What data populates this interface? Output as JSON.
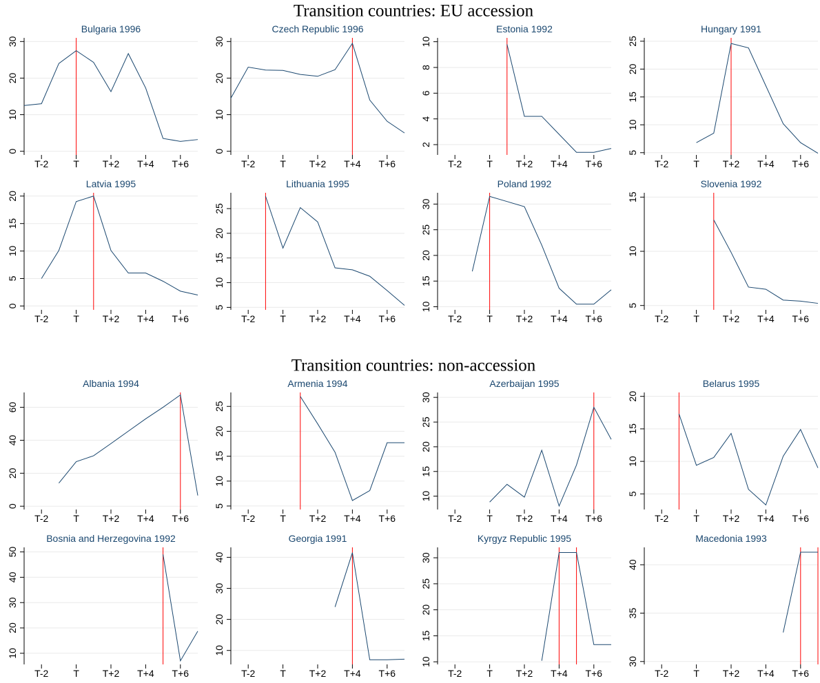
{
  "headings": [
    "Transition countries: EU accession",
    "Transition countries: non-accession"
  ],
  "chart_data": [
    {
      "type": "line",
      "title": "Bulgaria 1996",
      "x": [
        -3,
        -2,
        -1,
        0,
        1,
        2,
        3,
        4,
        5,
        6,
        7
      ],
      "values": [
        12.5,
        13,
        24,
        27.5,
        24.3,
        16.3,
        26.7,
        17.3,
        3.5,
        2.7,
        3.2
      ],
      "xlim": [
        -3,
        7
      ],
      "xticks": [
        {
          "value": -2,
          "label": "T-2"
        },
        {
          "value": 0,
          "label": "T"
        },
        {
          "value": 2,
          "label": "T+2"
        },
        {
          "value": 4,
          "label": "T+4"
        },
        {
          "value": 6,
          "label": "T+6"
        }
      ],
      "ylim": [
        -1,
        31
      ],
      "yticks": [
        0,
        10,
        20,
        30
      ],
      "vlines": [
        0
      ],
      "color": "#1a476f",
      "vline_color": "#ff0000",
      "grid": true
    },
    {
      "type": "line",
      "title": "Czech Republic 1996",
      "x": [
        -3,
        -2,
        -1,
        0,
        1,
        2,
        3,
        4,
        5,
        6,
        7
      ],
      "values": [
        14.5,
        23,
        22.2,
        22.1,
        21,
        20.5,
        22.3,
        29.5,
        14,
        8.2,
        5
      ],
      "xlim": [
        -3,
        7
      ],
      "xticks": [
        {
          "value": -2,
          "label": "T-2"
        },
        {
          "value": 0,
          "label": "T"
        },
        {
          "value": 2,
          "label": "T+2"
        },
        {
          "value": 4,
          "label": "T+4"
        },
        {
          "value": 6,
          "label": "T+6"
        }
      ],
      "ylim": [
        -1,
        31
      ],
      "yticks": [
        0,
        10,
        20,
        30
      ],
      "vlines": [
        4
      ],
      "color": "#1a476f",
      "vline_color": "#ff0000",
      "grid": true
    },
    {
      "type": "line",
      "title": "Estonia 1992",
      "x": [
        -3,
        -2,
        -1,
        0,
        1,
        2,
        3,
        4,
        5,
        6,
        7
      ],
      "values": [
        null,
        null,
        null,
        null,
        9.8,
        4.2,
        4.2,
        2.8,
        1.4,
        1.4,
        1.7
      ],
      "xlim": [
        -3,
        7
      ],
      "xticks": [
        {
          "value": -2,
          "label": "T-2"
        },
        {
          "value": 0,
          "label": "T"
        },
        {
          "value": 2,
          "label": "T+2"
        },
        {
          "value": 4,
          "label": "T+4"
        },
        {
          "value": 6,
          "label": "T+6"
        }
      ],
      "ylim": [
        1.2,
        10.3
      ],
      "yticks": [
        2,
        4,
        6,
        8,
        10
      ],
      "vlines": [
        1
      ],
      "color": "#1a476f",
      "vline_color": "#ff0000",
      "grid": true
    },
    {
      "type": "line",
      "title": "Hungary 1991",
      "x": [
        -3,
        -2,
        -1,
        0,
        1,
        2,
        3,
        4,
        5,
        6,
        7
      ],
      "values": [
        null,
        null,
        null,
        6.8,
        8.5,
        24.6,
        23.8,
        17,
        10.2,
        6.8,
        4.9
      ],
      "xlim": [
        -3,
        7
      ],
      "xticks": [
        {
          "value": -2,
          "label": "T-2"
        },
        {
          "value": 0,
          "label": "T"
        },
        {
          "value": 2,
          "label": "T+2"
        },
        {
          "value": 4,
          "label": "T+4"
        },
        {
          "value": 6,
          "label": "T+6"
        }
      ],
      "ylim": [
        4.6,
        25.6
      ],
      "yticks": [
        5,
        10,
        15,
        20,
        25
      ],
      "vlines": [
        2
      ],
      "color": "#1a476f",
      "vline_color": "#ff0000",
      "grid": true
    },
    {
      "type": "line",
      "title": "Latvia 1995",
      "x": [
        -3,
        -2,
        -1,
        0,
        1,
        2,
        3,
        4,
        5,
        6,
        7
      ],
      "values": [
        null,
        5,
        10.1,
        19,
        20,
        10.1,
        6,
        6,
        4.5,
        2.7,
        2
      ],
      "xlim": [
        -3,
        7
      ],
      "xticks": [
        {
          "value": -2,
          "label": "T-2"
        },
        {
          "value": 0,
          "label": "T"
        },
        {
          "value": 2,
          "label": "T+2"
        },
        {
          "value": 4,
          "label": "T+4"
        },
        {
          "value": 6,
          "label": "T+6"
        }
      ],
      "ylim": [
        -0.7,
        20.6
      ],
      "yticks": [
        0,
        5,
        10,
        15,
        20
      ],
      "vlines": [
        1
      ],
      "color": "#1a476f",
      "vline_color": "#ff0000",
      "grid": true
    },
    {
      "type": "line",
      "title": "Lithuania 1995",
      "x": [
        -3,
        -2,
        -1,
        0,
        1,
        2,
        3,
        4,
        5,
        6,
        7
      ],
      "values": [
        null,
        null,
        27.5,
        17,
        25.2,
        22.3,
        13,
        12.6,
        11.3,
        8.4,
        5.4
      ],
      "xlim": [
        -3,
        7
      ],
      "xticks": [
        {
          "value": -2,
          "label": "T-2"
        },
        {
          "value": 0,
          "label": "T"
        },
        {
          "value": 2,
          "label": "T+2"
        },
        {
          "value": 4,
          "label": "T+4"
        },
        {
          "value": 6,
          "label": "T+6"
        }
      ],
      "ylim": [
        4.5,
        28.2
      ],
      "yticks": [
        5,
        10,
        15,
        20,
        25
      ],
      "vlines": [
        -1
      ],
      "color": "#1a476f",
      "vline_color": "#ff0000",
      "grid": true
    },
    {
      "type": "line",
      "title": "Poland 1992",
      "x": [
        -3,
        -2,
        -1,
        0,
        1,
        2,
        3,
        4,
        5,
        6,
        7
      ],
      "values": [
        null,
        null,
        16.9,
        31.5,
        30.5,
        29.5,
        22,
        13.6,
        10.5,
        10.5,
        13.3
      ],
      "xlim": [
        -3,
        7
      ],
      "xticks": [
        {
          "value": -2,
          "label": "T-2"
        },
        {
          "value": 0,
          "label": "T"
        },
        {
          "value": 2,
          "label": "T+2"
        },
        {
          "value": 4,
          "label": "T+4"
        },
        {
          "value": 6,
          "label": "T+6"
        }
      ],
      "ylim": [
        9.4,
        32.2
      ],
      "yticks": [
        10,
        15,
        20,
        25,
        30
      ],
      "vlines": [
        0
      ],
      "color": "#1a476f",
      "vline_color": "#ff0000",
      "grid": true
    },
    {
      "type": "line",
      "title": "Slovenia 1992",
      "x": [
        -3,
        -2,
        -1,
        0,
        1,
        2,
        3,
        4,
        5,
        6,
        7
      ],
      "values": [
        null,
        null,
        null,
        null,
        12.9,
        9.9,
        6.7,
        6.5,
        5.5,
        5.4,
        5.2
      ],
      "xlim": [
        -3,
        7
      ],
      "xticks": [
        {
          "value": -2,
          "label": "T-2"
        },
        {
          "value": 0,
          "label": "T"
        },
        {
          "value": 2,
          "label": "T+2"
        },
        {
          "value": 4,
          "label": "T+4"
        },
        {
          "value": 6,
          "label": "T+6"
        }
      ],
      "ylim": [
        4.6,
        15.4
      ],
      "yticks": [
        5,
        10,
        15
      ],
      "vlines": [
        1
      ],
      "color": "#1a476f",
      "vline_color": "#ff0000",
      "grid": true
    },
    {
      "type": "line",
      "title": "Albania 1994",
      "x": [
        -3,
        -2,
        -1,
        0,
        1,
        2,
        3,
        4,
        5,
        6,
        7
      ],
      "values": [
        null,
        null,
        14,
        27,
        30.6,
        38,
        45.5,
        53,
        60,
        67.5,
        6.5
      ],
      "xlim": [
        -3,
        7
      ],
      "xticks": [
        {
          "value": -2,
          "label": "T-2"
        },
        {
          "value": 0,
          "label": "T"
        },
        {
          "value": 2,
          "label": "T+2"
        },
        {
          "value": 4,
          "label": "T+4"
        },
        {
          "value": 6,
          "label": "T+6"
        }
      ],
      "ylim": [
        -2,
        69
      ],
      "yticks": [
        0,
        20,
        40,
        60
      ],
      "vlines": [
        6
      ],
      "color": "#1a476f",
      "vline_color": "#ff0000",
      "grid": true
    },
    {
      "type": "line",
      "title": "Armenia 1994",
      "x": [
        -3,
        -2,
        -1,
        0,
        1,
        2,
        3,
        4,
        5,
        6,
        7
      ],
      "values": [
        null,
        null,
        null,
        null,
        27,
        21.5,
        15.8,
        6.1,
        8.1,
        17.7,
        17.7
      ],
      "xlim": [
        -3,
        7
      ],
      "xticks": [
        {
          "value": -2,
          "label": "T-2"
        },
        {
          "value": 0,
          "label": "T"
        },
        {
          "value": 2,
          "label": "T+2"
        },
        {
          "value": 4,
          "label": "T+4"
        },
        {
          "value": 6,
          "label": "T+6"
        }
      ],
      "ylim": [
        4.3,
        27.8
      ],
      "yticks": [
        5,
        10,
        15,
        20,
        25
      ],
      "vlines": [
        1
      ],
      "color": "#1a476f",
      "vline_color": "#ff0000",
      "grid": true
    },
    {
      "type": "line",
      "title": "Azerbaijan 1995",
      "x": [
        -3,
        -2,
        -1,
        0,
        1,
        2,
        3,
        4,
        5,
        6,
        7
      ],
      "values": [
        null,
        null,
        null,
        8.8,
        12.4,
        9.8,
        19.3,
        8,
        16.3,
        28,
        21.5
      ],
      "xlim": [
        -3,
        7
      ],
      "xticks": [
        {
          "value": -2,
          "label": "T-2"
        },
        {
          "value": 0,
          "label": "T"
        },
        {
          "value": 2,
          "label": "T+2"
        },
        {
          "value": 4,
          "label": "T+4"
        },
        {
          "value": 6,
          "label": "T+6"
        }
      ],
      "ylim": [
        7.3,
        31
      ],
      "yticks": [
        10,
        15,
        20,
        25,
        30
      ],
      "vlines": [
        6
      ],
      "color": "#1a476f",
      "vline_color": "#ff0000",
      "grid": true
    },
    {
      "type": "line",
      "title": "Belarus 1995",
      "x": [
        -3,
        -2,
        -1,
        0,
        1,
        2,
        3,
        4,
        5,
        6,
        7
      ],
      "values": [
        null,
        null,
        17.3,
        9.4,
        10.6,
        14.3,
        5.7,
        3.3,
        10.8,
        14.9,
        9
      ],
      "xlim": [
        -3,
        7
      ],
      "xticks": [
        {
          "value": -2,
          "label": "T-2"
        },
        {
          "value": 0,
          "label": "T"
        },
        {
          "value": 2,
          "label": "T+2"
        },
        {
          "value": 4,
          "label": "T+4"
        },
        {
          "value": 6,
          "label": "T+6"
        }
      ],
      "ylim": [
        2.6,
        20.6
      ],
      "yticks": [
        5,
        10,
        15,
        20
      ],
      "vlines": [
        -1
      ],
      "color": "#1a476f",
      "vline_color": "#ff0000",
      "grid": true
    },
    {
      "type": "line",
      "title": "Bosnia and Herzegovina 1992",
      "x": [
        -3,
        -2,
        -1,
        0,
        1,
        2,
        3,
        4,
        5,
        6,
        7
      ],
      "values": [
        null,
        null,
        null,
        null,
        null,
        null,
        null,
        null,
        49,
        7,
        18.7
      ],
      "xlim": [
        -3,
        7
      ],
      "xticks": [
        {
          "value": -2,
          "label": "T-2"
        },
        {
          "value": 0,
          "label": "T"
        },
        {
          "value": 2,
          "label": "T+2"
        },
        {
          "value": 4,
          "label": "T+4"
        },
        {
          "value": 6,
          "label": "T+6"
        }
      ],
      "ylim": [
        5.6,
        51.8
      ],
      "yticks": [
        10,
        20,
        30,
        40,
        50
      ],
      "vlines": [
        5
      ],
      "color": "#1a476f",
      "vline_color": "#ff0000",
      "grid": true
    },
    {
      "type": "line",
      "title": "Georgia 1991",
      "x": [
        -3,
        -2,
        -1,
        0,
        1,
        2,
        3,
        4,
        5,
        6,
        7
      ],
      "values": [
        null,
        null,
        null,
        null,
        null,
        null,
        24,
        41.5,
        7,
        7,
        7.2
      ],
      "xlim": [
        -3,
        7
      ],
      "xticks": [
        {
          "value": -2,
          "label": "T-2"
        },
        {
          "value": 0,
          "label": "T"
        },
        {
          "value": 2,
          "label": "T+2"
        },
        {
          "value": 4,
          "label": "T+4"
        },
        {
          "value": 6,
          "label": "T+6"
        }
      ],
      "ylim": [
        5.5,
        43.2
      ],
      "yticks": [
        10,
        20,
        30,
        40
      ],
      "vlines": [
        4
      ],
      "color": "#1a476f",
      "vline_color": "#ff0000",
      "grid": true
    },
    {
      "type": "line",
      "title": "Kyrgyz Republic 1995",
      "x": [
        -3,
        -2,
        -1,
        0,
        1,
        2,
        3,
        4,
        5,
        6,
        7
      ],
      "values": [
        null,
        null,
        null,
        null,
        null,
        null,
        10.2,
        31,
        31,
        13.3,
        13.3
      ],
      "xlim": [
        -3,
        7
      ],
      "xticks": [
        {
          "value": -2,
          "label": "T-2"
        },
        {
          "value": 0,
          "label": "T"
        },
        {
          "value": 2,
          "label": "T+2"
        },
        {
          "value": 4,
          "label": "T+4"
        },
        {
          "value": 6,
          "label": "T+6"
        }
      ],
      "ylim": [
        9.5,
        32
      ],
      "yticks": [
        10,
        15,
        20,
        25,
        30
      ],
      "vlines": [
        4,
        5
      ],
      "color": "#1a476f",
      "vline_color": "#ff0000",
      "grid": true
    },
    {
      "type": "line",
      "title": "Macedonia 1993",
      "x": [
        -3,
        -2,
        -1,
        0,
        1,
        2,
        3,
        4,
        5,
        6,
        7
      ],
      "values": [
        null,
        null,
        null,
        null,
        null,
        null,
        null,
        null,
        33,
        41.3,
        41.3
      ],
      "xlim": [
        -3,
        7
      ],
      "xticks": [
        {
          "value": -2,
          "label": "T-2"
        },
        {
          "value": 0,
          "label": "T"
        },
        {
          "value": 2,
          "label": "T+2"
        },
        {
          "value": 4,
          "label": "T+4"
        },
        {
          "value": 6,
          "label": "T+6"
        }
      ],
      "ylim": [
        29.7,
        41.8
      ],
      "yticks": [
        30,
        35,
        40
      ],
      "vlines": [
        6,
        7
      ],
      "color": "#1a476f",
      "vline_color": "#ff0000",
      "grid": true
    }
  ]
}
